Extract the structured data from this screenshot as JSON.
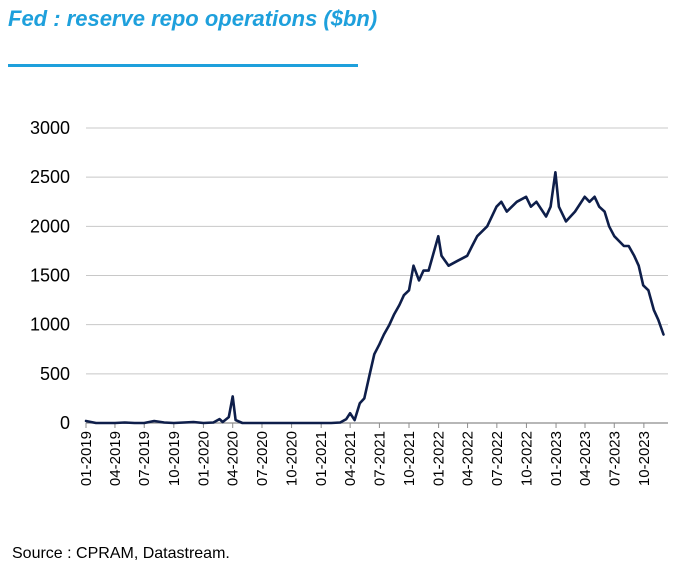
{
  "title": "Fed : reserve repo operations ($bn)",
  "source": "Source : CPRAM, Datastream.",
  "colors": {
    "title": "#1EA0DC",
    "line": "#0E1E4A",
    "grid": "#C8C8C8"
  },
  "chart_data": {
    "type": "line",
    "title": "Fed : reserve repo operations ($bn)",
    "xlabel": "",
    "ylabel": "",
    "ylim": [
      0,
      3000
    ],
    "yticks": [
      0,
      500,
      1000,
      1500,
      2000,
      2500,
      3000
    ],
    "xlim": [
      "2019-01",
      "2023-12"
    ],
    "xticks": [
      "01-2019",
      "04-2019",
      "07-2019",
      "10-2019",
      "01-2020",
      "04-2020",
      "07-2020",
      "10-2020",
      "01-2021",
      "04-2021",
      "07-2021",
      "10-2021",
      "01-2022",
      "04-2022",
      "07-2022",
      "10-2022",
      "01-2023",
      "04-2023",
      "07-2023",
      "10-2023"
    ],
    "grid": true,
    "legend": "none",
    "series": [
      {
        "x": [
          "2019-01-01",
          "2019-02-01",
          "2019-03-01",
          "2019-04-01",
          "2019-05-01",
          "2019-06-01",
          "2019-07-01",
          "2019-08-01",
          "2019-09-01",
          "2019-10-01",
          "2019-11-01",
          "2019-12-01",
          "2020-01-01",
          "2020-02-01",
          "2020-02-20",
          "2020-03-01",
          "2020-03-20",
          "2020-04-01",
          "2020-04-10",
          "2020-05-01",
          "2020-07-01",
          "2020-10-01",
          "2021-01-01",
          "2021-02-01",
          "2021-03-01",
          "2021-03-20",
          "2021-04-01",
          "2021-04-15",
          "2021-05-01",
          "2021-05-15",
          "2021-06-01",
          "2021-06-15",
          "2021-07-01",
          "2021-07-15",
          "2021-08-01",
          "2021-08-15",
          "2021-09-01",
          "2021-09-15",
          "2021-10-01",
          "2021-10-15",
          "2021-11-01",
          "2021-11-15",
          "2021-12-01",
          "2021-12-31",
          "2022-01-10",
          "2022-02-01",
          "2022-03-01",
          "2022-03-31",
          "2022-04-15",
          "2022-05-01",
          "2022-06-01",
          "2022-06-30",
          "2022-07-15",
          "2022-08-01",
          "2022-09-01",
          "2022-09-30",
          "2022-10-15",
          "2022-11-01",
          "2022-12-01",
          "2022-12-15",
          "2022-12-30",
          "2023-01-10",
          "2023-02-01",
          "2023-03-01",
          "2023-03-31",
          "2023-04-15",
          "2023-05-01",
          "2023-05-15",
          "2023-06-01",
          "2023-06-15",
          "2023-07-01",
          "2023-07-31",
          "2023-08-15",
          "2023-09-01",
          "2023-09-15",
          "2023-09-29",
          "2023-10-15",
          "2023-11-01",
          "2023-11-15",
          "2023-12-01"
        ],
        "y": [
          20,
          0,
          0,
          0,
          5,
          0,
          0,
          20,
          5,
          0,
          5,
          10,
          0,
          5,
          40,
          10,
          60,
          270,
          30,
          0,
          0,
          0,
          0,
          0,
          5,
          40,
          100,
          30,
          200,
          250,
          500,
          700,
          800,
          900,
          1000,
          1100,
          1200,
          1300,
          1350,
          1600,
          1450,
          1550,
          1550,
          1900,
          1700,
          1600,
          1650,
          1700,
          1800,
          1900,
          2000,
          2200,
          2250,
          2150,
          2250,
          2300,
          2200,
          2250,
          2100,
          2200,
          2550,
          2200,
          2050,
          2150,
          2300,
          2250,
          2300,
          2200,
          2150,
          2000,
          1900,
          1800,
          1800,
          1700,
          1600,
          1400,
          1350,
          1150,
          1050,
          900
        ]
      }
    ]
  }
}
